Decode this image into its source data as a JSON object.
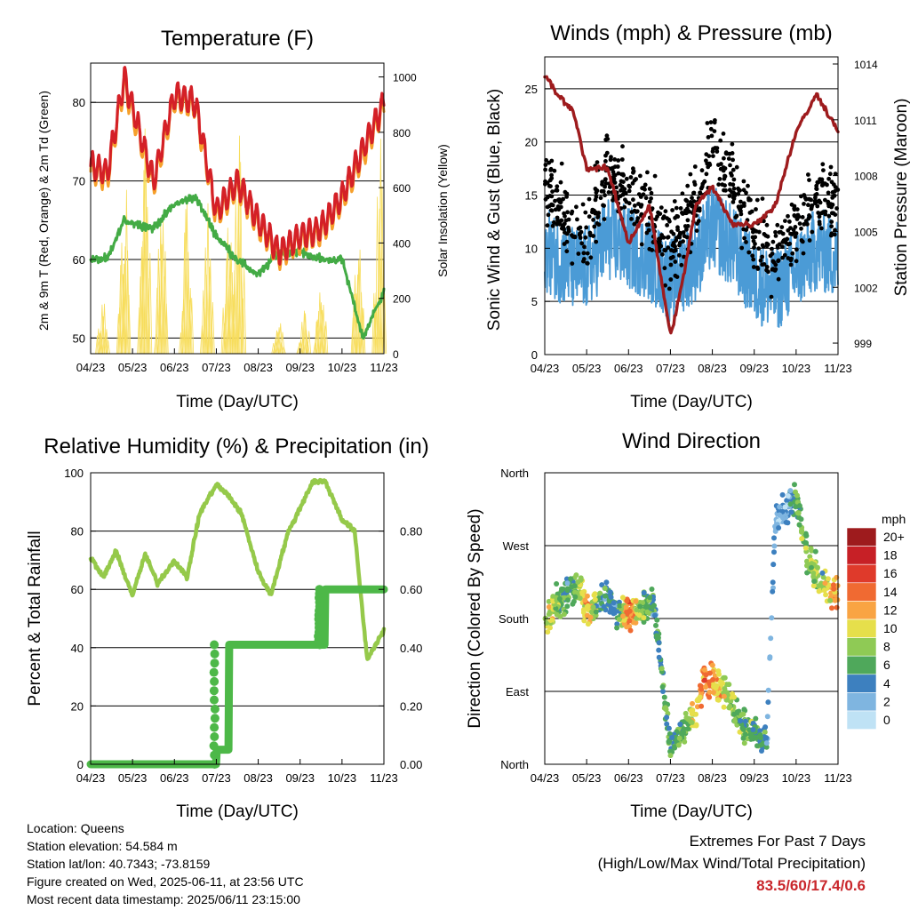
{
  "colors": {
    "temp2m": "#d42027",
    "temp9m": "#f6a02b",
    "dewpoint": "#43ab45",
    "solar": "#f7dd5c",
    "wind": "#4b9bd6",
    "gust": "#000000",
    "pressure": "#9e1b1d",
    "rh": "#95c94a",
    "rain": "#4db848",
    "extremes": "#c9262b"
  },
  "x_ticks": [
    "04/23",
    "05/23",
    "06/23",
    "07/23",
    "08/23",
    "09/23",
    "10/23",
    "11/23"
  ],
  "panels": {
    "temperature": {
      "title": "Temperature (F)",
      "xlabel": "Time (Day/UTC)",
      "ylabel": "2m & 9m T (Red, Orange) & 2m Td (Green)",
      "y2label": "Solar Insolation (Yellow)"
    },
    "winds": {
      "title": "Winds (mph) & Pressure (mb)",
      "xlabel": "Time (Day/UTC)",
      "ylabel": "Sonic Wind & Gust (Blue, Black)",
      "y2label": "Station Pressure (Maroon)"
    },
    "humidity": {
      "title": "Relative Humidity (%) & Precipitation (in)",
      "xlabel": "Time (Day/UTC)",
      "ylabel": "Percent & Total Rainfall"
    },
    "direction": {
      "title": "Wind Direction",
      "xlabel": "Time (Day/UTC)",
      "ylabel": "Direction (Colored By Speed)",
      "legend_title": "mph",
      "legend_labels": [
        "20+",
        "18",
        "16",
        "14",
        "12",
        "10",
        "8",
        "6",
        "4",
        "2",
        "0"
      ],
      "legend_colors": [
        "#9e1b1d",
        "#c72026",
        "#df3a2b",
        "#f06a32",
        "#f9a443",
        "#e6df4b",
        "#8fca55",
        "#4fa85b",
        "#3d80bf",
        "#7fb5e0",
        "#bfe2f5"
      ]
    }
  },
  "footer": {
    "location": "Location: Queens",
    "elevation": "Station elevation: 54.584 m",
    "latlon": "Station lat/lon: 40.7343; -73.8159",
    "created": "Figure created on Wed, 2025-06-11, at 23:56 UTC",
    "recent": "Most recent data timestamp: 2025/06/11 23:15:00"
  },
  "extremes": {
    "title": "Extremes For Past 7 Days",
    "subtitle": "(High/Low/Max Wind/Total Precipitation)",
    "values": "83.5/60/17.4/0.6"
  },
  "chart_data": [
    {
      "type": "line",
      "title": "Temperature (F)",
      "xlabel": "Time (Day/UTC)",
      "ylabel": "2m & 9m T (Red, Orange) & 2m Td (Green)",
      "y2label": "Solar Insolation (Yellow)",
      "ylim": [
        48,
        85
      ],
      "y2lim": [
        0,
        1050
      ],
      "yticks": [
        50,
        60,
        70,
        80
      ],
      "y2ticks": [
        0,
        200,
        400,
        600,
        800,
        1000
      ],
      "x": [
        0,
        0.4,
        0.8,
        1.5,
        2,
        2.5,
        3,
        3.5,
        4,
        4.5,
        5,
        5.5,
        6,
        6.5,
        7
      ],
      "series": [
        {
          "values": [
            72,
            71,
            83,
            70,
            81,
            80,
            66,
            70,
            65,
            61,
            63,
            64,
            68,
            74,
            80
          ]
        },
        {
          "values": [
            60,
            60,
            65,
            64,
            67,
            68,
            63,
            60,
            58,
            61,
            61,
            60,
            60,
            50,
            56
          ]
        },
        {
          "peaks_x": [
            0.3,
            0.8,
            1.3,
            1.7,
            2.3,
            2.8,
            3.3,
            3.55,
            4.5,
            5.1,
            5.5,
            6.4,
            6.9
          ],
          "peaks": [
            230,
            920,
            850,
            700,
            620,
            560,
            600,
            990,
            150,
            200,
            280,
            560,
            920
          ]
        }
      ]
    },
    {
      "type": "scatter",
      "title": "Winds (mph) & Pressure (mb)",
      "xlabel": "Time (Day/UTC)",
      "ylabel": "Sonic Wind & Gust (Blue, Black)",
      "y2label": "Station Pressure (Maroon)",
      "ylim": [
        0,
        28
      ],
      "y2lim": [
        998,
        1014
      ],
      "yticks": [
        0,
        5,
        10,
        15,
        20,
        25
      ],
      "y2ticks": [
        999,
        1002,
        1005,
        1008,
        1011,
        1014
      ],
      "x": [
        0,
        0.3,
        0.7,
        1,
        1.5,
        2,
        2.5,
        3,
        3.3,
        3.6,
        4,
        4.5,
        5,
        5.5,
        6,
        6.5,
        7
      ],
      "series": [
        {
          "values": [
            10,
            9,
            8,
            8,
            11,
            10,
            9,
            7,
            8,
            9,
            12,
            10,
            7,
            6,
            8,
            10,
            9
          ]
        },
        {
          "values": [
            16,
            14,
            12,
            11,
            17,
            15,
            14,
            10,
            12,
            14,
            20,
            16,
            11,
            9,
            12,
            15,
            14
          ]
        },
        {
          "values": [
            1013,
            1012,
            1011,
            1008,
            1008,
            1004,
            1006,
            999,
            1002,
            1006,
            1007,
            1005,
            1005,
            1006,
            1010,
            1012,
            1010
          ]
        }
      ]
    },
    {
      "type": "line",
      "title": "Relative Humidity (%) & Precipitation (in)",
      "xlabel": "Time (Day/UTC)",
      "ylabel": "Percent & Total Rainfall",
      "ylim": [
        0,
        100
      ],
      "y2lim": [
        0,
        1
      ],
      "yticks": [
        0,
        20,
        40,
        60,
        80,
        100
      ],
      "y2ticks": [
        "0.00",
        "0.20",
        "0.40",
        "0.60",
        "0.80"
      ],
      "x": [
        0,
        0.3,
        0.6,
        1,
        1.3,
        1.6,
        2,
        2.3,
        2.6,
        3,
        3.3,
        3.6,
        4,
        4.3,
        4.7,
        5,
        5.3,
        5.6,
        6,
        6.3,
        6.6,
        7
      ],
      "series": [
        {
          "values": [
            71,
            64,
            73,
            58,
            72,
            62,
            70,
            64,
            86,
            96,
            92,
            86,
            66,
            58,
            79,
            88,
            97,
            97,
            84,
            80,
            36,
            46
          ]
        },
        {
          "values": [
            0,
            0,
            0,
            0,
            0,
            0,
            0,
            0,
            0,
            0.05,
            0.41,
            0.41,
            0.41,
            0.41,
            0.41,
            0.41,
            0.41,
            0.6,
            0.6,
            0.6,
            0.6,
            0.6
          ]
        }
      ]
    },
    {
      "type": "scatter",
      "title": "Wind Direction",
      "xlabel": "Time (Day/UTC)",
      "ylabel": "Direction (Colored By Speed)",
      "yticks": [
        "North",
        "East",
        "South",
        "West",
        "North"
      ],
      "ylim": [
        0,
        360
      ],
      "x": [
        0.1,
        0.3,
        0.5,
        0.8,
        1,
        1.3,
        1.5,
        1.7,
        2,
        2.3,
        2.6,
        3,
        3.3,
        3.6,
        3.8,
        4,
        4.3,
        4.6,
        5,
        5.3,
        5.5,
        5.8,
        6,
        6.3,
        6.6,
        6.9
      ],
      "series": [
        {
          "values": [
            180,
            200,
            210,
            220,
            190,
            200,
            210,
            190,
            185,
            190,
            200,
            20,
            40,
            60,
            110,
            100,
            90,
            60,
            40,
            30,
            300,
            320,
            330,
            250,
            230,
            210
          ]
        },
        {
          "values": [
            10,
            8,
            6,
            7,
            12,
            6,
            5,
            4,
            14,
            8,
            5,
            6,
            6,
            10,
            14,
            12,
            9,
            7,
            6,
            4,
            2,
            3,
            6,
            8,
            8,
            13
          ]
        }
      ]
    }
  ]
}
